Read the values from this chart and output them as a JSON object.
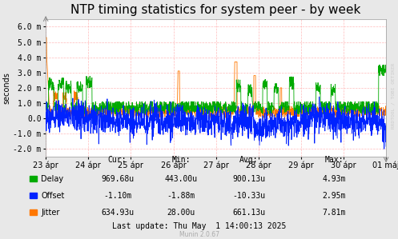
{
  "title": "NTP timing statistics for system peer - by week",
  "ylabel": "seconds",
  "background_color": "#e8e8e8",
  "plot_bg_color": "#ffffff",
  "grid_color": "#ffaaaa",
  "ylim": [
    -0.0025,
    0.0065
  ],
  "yticks": [
    -0.002,
    -0.001,
    0,
    0.001,
    0.002,
    0.003,
    0.004,
    0.005,
    0.006
  ],
  "ytick_labels": [
    "-2.0 m",
    "-1.0 m",
    "0.0",
    "1.0 m",
    "2.0 m",
    "3.0 m",
    "4.0 m",
    "5.0 m",
    "6.0 m"
  ],
  "xticklabels": [
    "23 ápr",
    "24 ápr",
    "25 ápr",
    "26 ápr",
    "27 ápr",
    "28 ápr",
    "29 ápr",
    "30 ápr",
    "01 máj"
  ],
  "delay_color": "#00aa00",
  "offset_color": "#0022ff",
  "jitter_color": "#ff7700",
  "legend_labels": [
    "Delay",
    "Offset",
    "Jitter"
  ],
  "stats_header": [
    "Cur:",
    "Min:",
    "Avg:",
    "Max:"
  ],
  "stats_delay": [
    "969.68u",
    "443.00u",
    "900.13u",
    "4.93m"
  ],
  "stats_offset": [
    "-1.10m",
    "-1.88m",
    "-10.33u",
    "2.95m"
  ],
  "stats_jitter": [
    "634.93u",
    "28.00u",
    "661.13u",
    "7.81m"
  ],
  "last_update": "Last update: Thu May  1 14:00:13 2025",
  "munin_version": "Munin 2.0.67",
  "watermark": "RRDTOOL / TOBI OETIKER",
  "title_fontsize": 11,
  "axis_fontsize": 7,
  "stats_fontsize": 7
}
